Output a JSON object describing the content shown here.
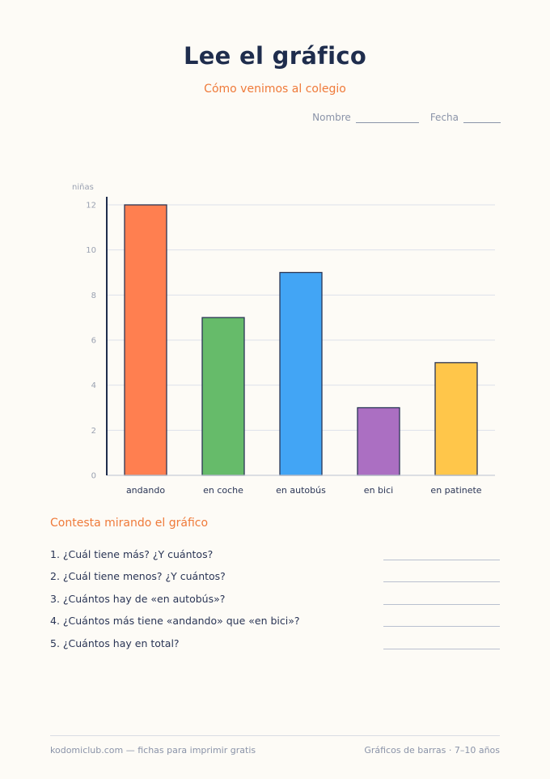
{
  "header": {
    "title": "Lee el gráfico",
    "subtitle": "Cómo venimos al colegio",
    "name_label": "Nombre",
    "date_label": "Fecha"
  },
  "chart_data": {
    "type": "bar",
    "ylabel": "niñas",
    "categories": [
      "andando",
      "en coche",
      "en autobús",
      "en bici",
      "en patinete"
    ],
    "values": [
      12,
      7,
      9,
      3,
      5
    ],
    "colors": [
      "#ff7f50",
      "#66bb6a",
      "#42a5f5",
      "#ab6fc2",
      "#ffc64a"
    ],
    "yticks": [
      0,
      2,
      4,
      6,
      8,
      10,
      12
    ],
    "ylim": [
      0,
      12
    ],
    "grid": true
  },
  "questions": {
    "heading": "Contesta mirando el gráfico",
    "items": [
      "1. ¿Cuál tiene más? ¿Y cuántos?",
      "2. ¿Cuál tiene menos? ¿Y cuántos?",
      "3. ¿Cuántos hay de «en autobús»?",
      "4. ¿Cuántos más tiene «andando» que «en bici»?",
      "5. ¿Cuántos hay en total?"
    ]
  },
  "footer": {
    "left": "kodomiclub.com — fichas para imprimir gratis",
    "right": "Gráficos de barras · 7–10 años"
  }
}
